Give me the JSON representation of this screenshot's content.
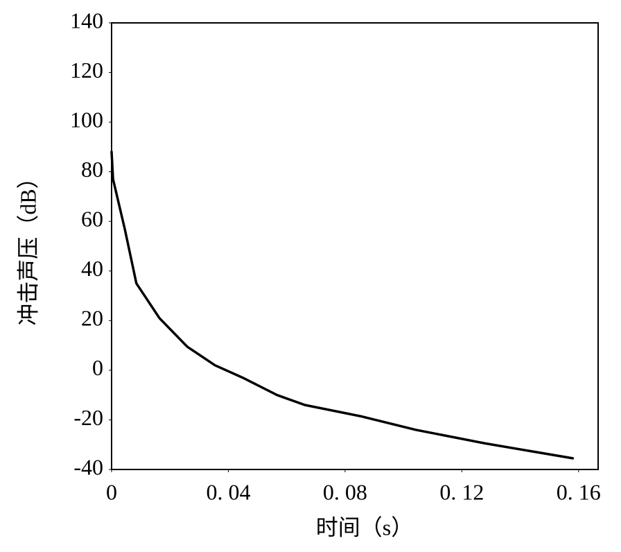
{
  "chart_data": {
    "type": "line",
    "x_label": "时间（s）",
    "y_label": "冲击声压（dB）",
    "series": [
      {
        "color": "#000000",
        "x": [
          0,
          0.0005,
          0.0045,
          0.0085,
          0.0164,
          0.0259,
          0.0354,
          0.0449,
          0.0567,
          0.0662,
          0.0852,
          0.1042,
          0.128,
          0.158
        ],
        "values": [
          88,
          77,
          57,
          35,
          21,
          9.5,
          2,
          -3,
          -10,
          -14,
          -18.5,
          -24,
          -29.5,
          -35.5
        ]
      }
    ],
    "xlim": [
      0,
      0.1667
    ],
    "xticks": [
      0,
      {
        "value": 0.04,
        "label": "0. 04"
      },
      {
        "value": 0.08,
        "label": "0. 08"
      },
      {
        "value": 0.12,
        "label": "0. 12"
      },
      {
        "value": 0.16,
        "label": "0. 16"
      }
    ],
    "ylim": [
      -40,
      140
    ],
    "yticks": [
      -40,
      -20,
      0,
      20,
      40,
      60,
      80,
      100,
      120,
      140
    ],
    "grid": false
  }
}
